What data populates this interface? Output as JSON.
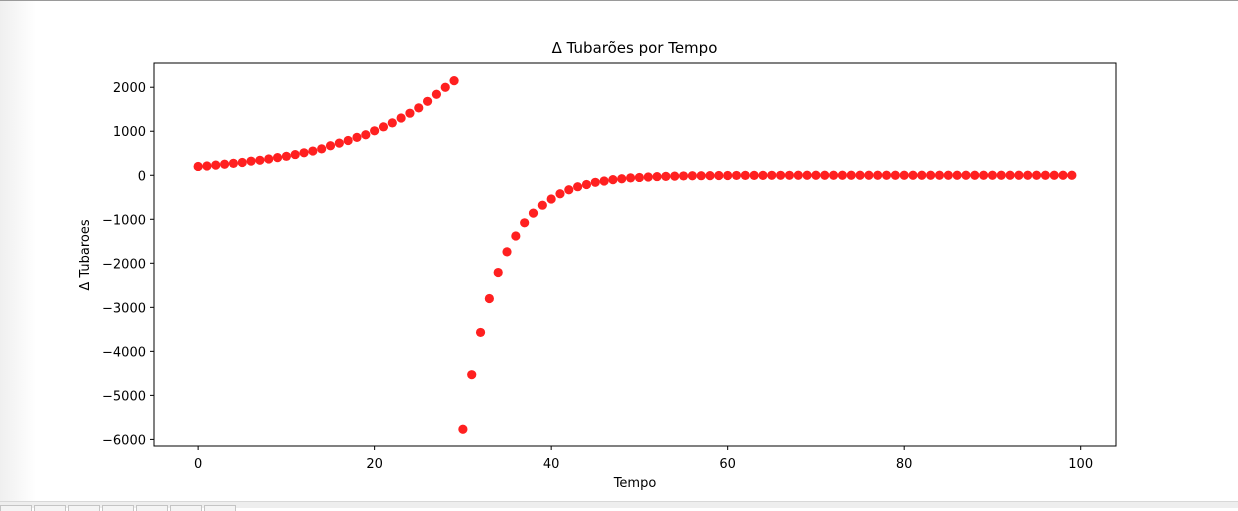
{
  "chart_data": {
    "type": "scatter",
    "title": "Δ Tubarões por Tempo",
    "xlabel": "Tempo",
    "ylabel": "Δ Tubaroes",
    "xlim": [
      -5,
      104
    ],
    "ylim": [
      -6150,
      2550
    ],
    "xticks": [
      0,
      20,
      40,
      60,
      80,
      100
    ],
    "yticks": [
      2000,
      1000,
      0,
      -1000,
      -2000,
      -3000,
      -4000,
      -5000,
      -6000
    ],
    "xtick_labels": [
      "0",
      "20",
      "40",
      "60",
      "80",
      "100"
    ],
    "ytick_labels": [
      "2000",
      "1000",
      "0",
      "−1000",
      "−2000",
      "−3000",
      "−4000",
      "−5000",
      "−6000"
    ],
    "grid": false,
    "marker_color": "#ff2020",
    "x": [
      0,
      1,
      2,
      3,
      4,
      5,
      6,
      7,
      8,
      9,
      10,
      11,
      12,
      13,
      14,
      15,
      16,
      17,
      18,
      19,
      20,
      21,
      22,
      23,
      24,
      25,
      26,
      27,
      28,
      29,
      30,
      31,
      32,
      33,
      34,
      35,
      36,
      37,
      38,
      39,
      40,
      41,
      42,
      43,
      44,
      45,
      46,
      47,
      48,
      49,
      50,
      51,
      52,
      53,
      54,
      55,
      56,
      57,
      58,
      59,
      60,
      61,
      62,
      63,
      64,
      65,
      66,
      67,
      68,
      69,
      70,
      71,
      72,
      73,
      74,
      75,
      76,
      77,
      78,
      79,
      80,
      81,
      82,
      83,
      84,
      85,
      86,
      87,
      88,
      89,
      90,
      91,
      92,
      93,
      94,
      95,
      96,
      97,
      98,
      99
    ],
    "y": [
      200,
      210,
      230,
      250,
      270,
      290,
      320,
      340,
      370,
      400,
      430,
      470,
      510,
      550,
      600,
      670,
      730,
      790,
      860,
      920,
      1010,
      1100,
      1190,
      1300,
      1410,
      1530,
      1680,
      1840,
      2000,
      2150,
      -5770,
      -4530,
      -3570,
      -2800,
      -2210,
      -1740,
      -1380,
      -1080,
      -860,
      -680,
      -540,
      -420,
      -330,
      -260,
      -210,
      -160,
      -130,
      -100,
      -80,
      -60,
      -50,
      -40,
      -30,
      -25,
      -20,
      -15,
      -12,
      -10,
      -8,
      -6,
      -5,
      -4,
      -3,
      -2,
      -2,
      -1,
      -1,
      -1,
      0,
      0,
      0,
      0,
      0,
      0,
      0,
      0,
      0,
      0,
      0,
      0,
      0,
      0,
      0,
      0,
      0,
      0,
      0,
      0,
      0,
      0,
      0,
      0,
      0,
      0,
      0,
      0,
      0,
      0,
      0,
      0
    ]
  }
}
